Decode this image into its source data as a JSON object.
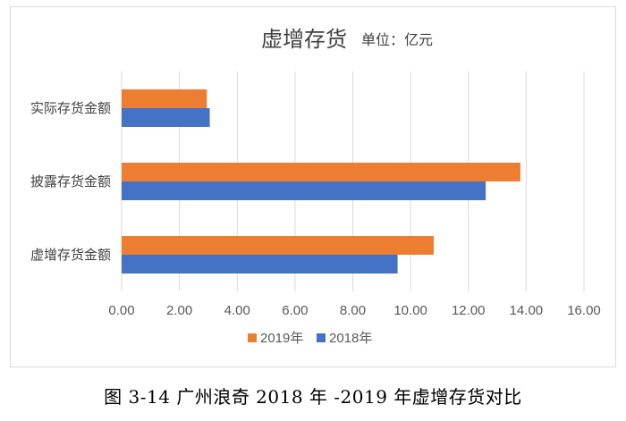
{
  "chart_data": {
    "type": "bar",
    "orientation": "horizontal",
    "title": "虚增存货",
    "unit_label": "单位：亿元",
    "categories": [
      "虚增存货金额",
      "披露存货金额",
      "实际存货金额"
    ],
    "series": [
      {
        "name": "2019年",
        "color": "#ed7d31",
        "values": [
          10.8,
          13.8,
          2.95
        ]
      },
      {
        "name": "2018年",
        "color": "#4472c4",
        "values": [
          9.55,
          12.6,
          3.05
        ]
      }
    ],
    "xlim": [
      0,
      16
    ],
    "ticks": [
      "0.00",
      "2.00",
      "4.00",
      "6.00",
      "8.00",
      "10.00",
      "12.00",
      "14.00",
      "16.00"
    ],
    "grid": true,
    "legend_position": "bottom"
  },
  "caption": "图 3-14 广州浪奇 2018 年 -2019 年虚增存货对比"
}
